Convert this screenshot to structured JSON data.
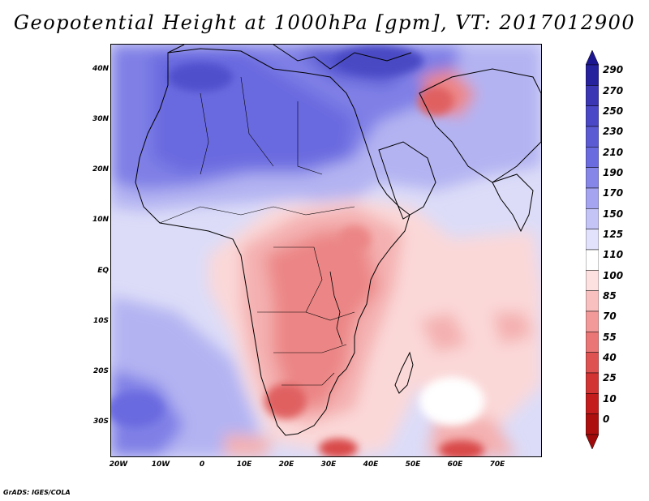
{
  "title": "Geopotential Height at 1000hPa [gpm], VT: 2017012900",
  "credit": "GrADS: IGES/COLA",
  "axes": {
    "lat_labels": [
      "40N",
      "30N",
      "20N",
      "10N",
      "EQ",
      "10S",
      "20S",
      "30S"
    ],
    "lon_labels": [
      "20W",
      "10W",
      "0",
      "10E",
      "20E",
      "30E",
      "40E",
      "50E",
      "60E",
      "70E"
    ],
    "lat_values": [
      40,
      30,
      20,
      10,
      0,
      -10,
      -20,
      -30
    ],
    "lon_values": [
      -20,
      -10,
      0,
      10,
      20,
      30,
      40,
      50,
      60,
      70
    ],
    "lat_range": [
      -36.5,
      45
    ],
    "lon_range": [
      -22.5,
      78
    ]
  },
  "colorbar": {
    "labels": [
      "290",
      "270",
      "250",
      "230",
      "210",
      "190",
      "170",
      "150",
      "125",
      "110",
      "100",
      "85",
      "70",
      "55",
      "40",
      "25",
      "10",
      "0"
    ],
    "colors": [
      "#26219c",
      "#3a36b4",
      "#4a48c6",
      "#5b5bd4",
      "#6b6be0",
      "#8686e8",
      "#a4a4f0",
      "#c4c4f7",
      "#e2e2fc",
      "#ffffff",
      "#fde0e0",
      "#f9c0c0",
      "#f29a9a",
      "#ea7676",
      "#df5252",
      "#d23434",
      "#c41c1c",
      "#ad0f0f"
    ],
    "top_arrow_color": "#1c1690",
    "bottom_arrow_color": "#a00a0a"
  },
  "field_colors": {
    "deep_blue": "#5757d1",
    "mid_blue": "#7f7fe6",
    "light_blue": "#b3b3f2",
    "pale_blue": "#dcdcf8",
    "white": "#ffffff",
    "pale_red": "#fbd8d8",
    "light_red": "#f4b0b0",
    "mid_red": "#ec8686",
    "deep_red": "#d94848"
  }
}
